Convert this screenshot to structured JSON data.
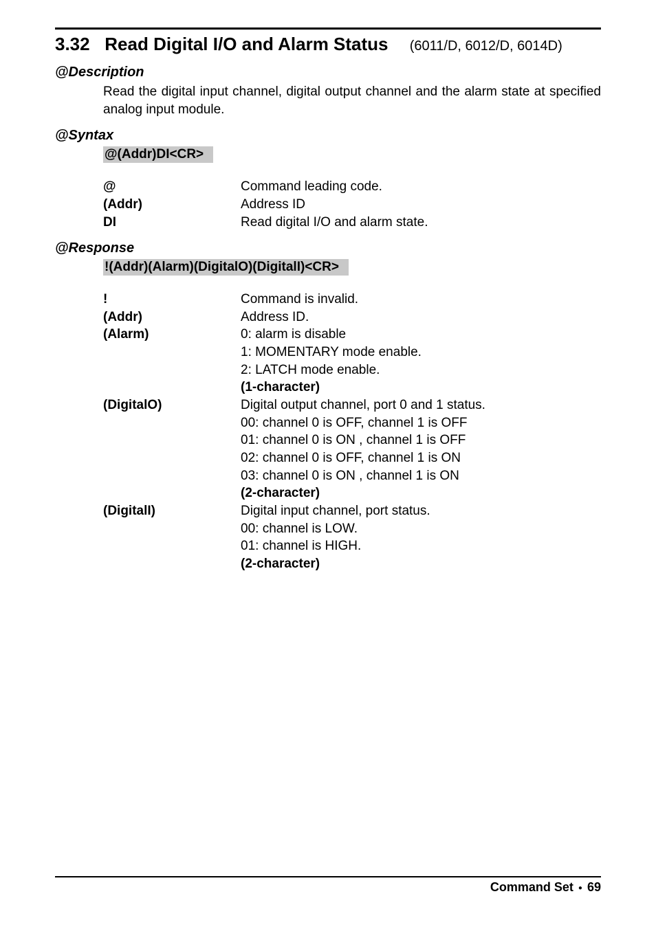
{
  "top_rule_color": "#000000",
  "section": {
    "number": "3.32",
    "title": "Read Digital I/O and Alarm Status",
    "suffix": "(6011/D, 6012/D, 6014D)"
  },
  "description": {
    "heading": "@Description",
    "text": "Read the digital input channel, digital output channel and the alarm state at specified analog input module."
  },
  "syntax": {
    "heading": "@Syntax",
    "code": "@(Addr)DI<CR>",
    "rows": [
      {
        "key": "@",
        "val": "Command leading code."
      },
      {
        "key": "(Addr)",
        "val": "Address ID"
      },
      {
        "key": "DI",
        "val": "Read digital I/O and alarm state."
      }
    ]
  },
  "response": {
    "heading": "@Response",
    "code": "!(Addr)(Alarm)(DigitalO)(DigitalI)<CR>",
    "rows": [
      {
        "key": "!",
        "lines": [
          "Command is invalid."
        ]
      },
      {
        "key": "(Addr)",
        "lines": [
          "Address ID."
        ]
      },
      {
        "key": "(Alarm)",
        "lines": [
          "0: alarm is disable",
          "1: MOMENTARY mode enable.",
          "2: LATCH mode enable."
        ],
        "tail_bold": "(1-character)"
      },
      {
        "key": "(DigitalO)",
        "lines": [
          "Digital output channel, port 0 and 1 status.",
          "00: channel 0 is OFF, channel 1 is OFF",
          "01: channel 0 is ON  , channel 1 is OFF",
          "02: channel 0 is OFF, channel 1 is ON",
          "03: channel 0 is ON  , channel 1 is ON"
        ],
        "tail_bold": "(2-character)"
      },
      {
        "key": "(DigitalI)",
        "lines": [
          "Digital input channel, port status.",
          "00: channel is LOW.",
          "01: channel is HIGH."
        ],
        "tail_bold": "(2-character)"
      }
    ]
  },
  "footer": {
    "label": "Command Set",
    "page": "69"
  }
}
